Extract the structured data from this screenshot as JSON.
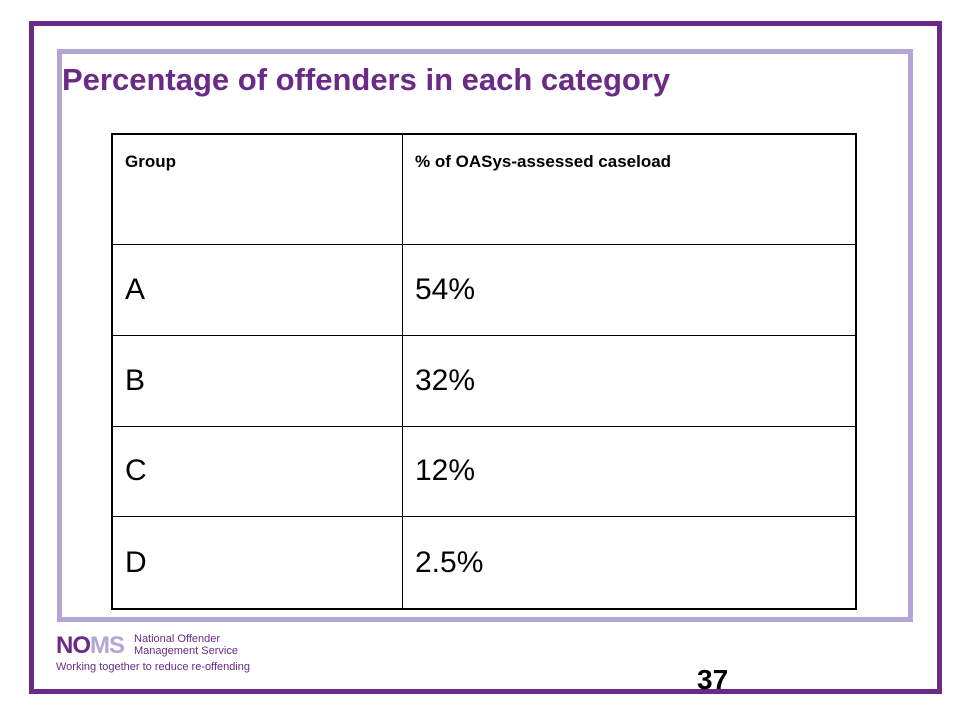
{
  "slide": {
    "title": "Percentage of offenders in each category",
    "page_number": "37"
  },
  "table": {
    "headers": [
      "Group",
      "% of OASys-assessed caseload"
    ],
    "rows": [
      [
        "A",
        "54%"
      ],
      [
        "B",
        "32%"
      ],
      [
        "C",
        "12%"
      ],
      [
        "D",
        "2.5%"
      ]
    ]
  },
  "logo": {
    "mark_part1": "NO",
    "mark_part2": "MS",
    "name_line1": "National Offender",
    "name_line2": "Management Service",
    "tagline": "Working together to reduce re-offending"
  },
  "colors": {
    "outer_frame": "#6a2a86",
    "inner_frame": "#b3a6d4",
    "title": "#6a2a86"
  }
}
